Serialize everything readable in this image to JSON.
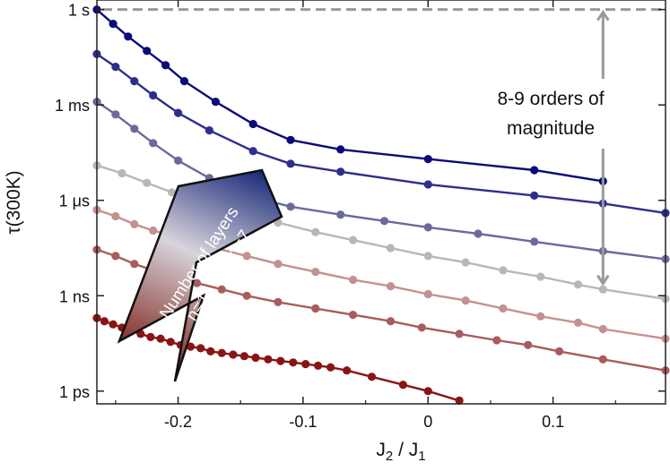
{
  "chart_data": {
    "type": "line",
    "xlabel": "J",
    "xlabel_sub1": "2",
    "xlabel_div": " / J",
    "xlabel_sub2": "1",
    "ylabel": "τ(300K)",
    "x_axis": {
      "range": [
        -0.265,
        0.19
      ],
      "ticks": [
        -0.2,
        -0.1,
        0,
        0.1
      ],
      "tick_labels": [
        "-0.2",
        "-0.1",
        "0",
        "0.1"
      ]
    },
    "y_axis": {
      "scale": "log10 seconds",
      "range": [
        -12.4,
        0.3
      ],
      "ticks": [
        0,
        -3,
        -6,
        -9,
        -12
      ],
      "tick_labels": [
        "1 s",
        "1 ms",
        "1 μs",
        "1 ns",
        "1 ps"
      ]
    },
    "grid": false,
    "series": [
      {
        "color": "#b7b7b7",
        "points": [
          [
            -0.265,
            -4.9
          ],
          [
            -0.245,
            -5.15
          ],
          [
            -0.225,
            -5.45
          ],
          [
            -0.205,
            -5.75
          ],
          [
            -0.175,
            -6.1
          ],
          [
            -0.145,
            -6.45
          ],
          [
            -0.12,
            -6.7
          ],
          [
            -0.09,
            -7.0
          ],
          [
            -0.06,
            -7.25
          ],
          [
            -0.03,
            -7.5
          ],
          [
            0.0,
            -7.75
          ],
          [
            0.03,
            -7.95
          ],
          [
            0.06,
            -8.2
          ],
          [
            0.09,
            -8.4
          ],
          [
            0.12,
            -8.65
          ],
          [
            0.14,
            -8.8
          ],
          [
            0.19,
            -9.1
          ]
        ]
      },
      {
        "color": "#0a0a78",
        "points": [
          [
            -0.265,
            0.0
          ],
          [
            -0.252,
            -0.45
          ],
          [
            -0.24,
            -0.85
          ],
          [
            -0.225,
            -1.3
          ],
          [
            -0.21,
            -1.75
          ],
          [
            -0.195,
            -2.25
          ],
          [
            -0.17,
            -2.9
          ],
          [
            -0.14,
            -3.6
          ],
          [
            -0.11,
            -4.1
          ],
          [
            -0.07,
            -4.4
          ],
          [
            0.0,
            -4.7
          ],
          [
            0.085,
            -5.05
          ],
          [
            0.14,
            -5.4
          ]
        ]
      },
      {
        "color": "#2e2e8c",
        "points": [
          [
            -0.265,
            -1.4
          ],
          [
            -0.25,
            -1.8
          ],
          [
            -0.235,
            -2.25
          ],
          [
            -0.22,
            -2.7
          ],
          [
            -0.2,
            -3.25
          ],
          [
            -0.175,
            -3.8
          ],
          [
            -0.14,
            -4.45
          ],
          [
            -0.11,
            -4.85
          ],
          [
            -0.07,
            -5.1
          ],
          [
            0.0,
            -5.5
          ],
          [
            0.085,
            -5.85
          ],
          [
            0.14,
            -6.1
          ],
          [
            0.19,
            -6.4
          ]
        ]
      },
      {
        "color": "#6a6a9e",
        "points": [
          [
            -0.265,
            -2.9
          ],
          [
            -0.25,
            -3.3
          ],
          [
            -0.235,
            -3.75
          ],
          [
            -0.22,
            -4.2
          ],
          [
            -0.2,
            -4.75
          ],
          [
            -0.175,
            -5.3
          ],
          [
            -0.145,
            -5.85
          ],
          [
            -0.11,
            -6.2
          ],
          [
            -0.07,
            -6.45
          ],
          [
            -0.035,
            -6.65
          ],
          [
            0.0,
            -6.85
          ],
          [
            0.04,
            -7.05
          ],
          [
            0.085,
            -7.3
          ],
          [
            0.14,
            -7.6
          ],
          [
            0.19,
            -7.85
          ]
        ]
      },
      {
        "color": "#c49090",
        "points": [
          [
            -0.265,
            -6.3
          ],
          [
            -0.25,
            -6.5
          ],
          [
            -0.235,
            -6.75
          ],
          [
            -0.22,
            -6.95
          ],
          [
            -0.2,
            -7.15
          ],
          [
            -0.175,
            -7.45
          ],
          [
            -0.145,
            -7.75
          ],
          [
            -0.12,
            -8.0
          ],
          [
            -0.09,
            -8.25
          ],
          [
            -0.06,
            -8.5
          ],
          [
            -0.03,
            -8.7
          ],
          [
            0.0,
            -8.95
          ],
          [
            0.03,
            -9.15
          ],
          [
            0.06,
            -9.4
          ],
          [
            0.09,
            -9.65
          ],
          [
            0.12,
            -9.85
          ],
          [
            0.14,
            -10.05
          ],
          [
            0.19,
            -10.35
          ]
        ]
      },
      {
        "color": "#a85c5c",
        "points": [
          [
            -0.265,
            -7.55
          ],
          [
            -0.25,
            -7.75
          ],
          [
            -0.235,
            -8.0
          ],
          [
            -0.22,
            -8.2
          ],
          [
            -0.205,
            -8.4
          ],
          [
            -0.185,
            -8.6
          ],
          [
            -0.165,
            -8.8
          ],
          [
            -0.145,
            -9.0
          ],
          [
            -0.12,
            -9.2
          ],
          [
            -0.09,
            -9.4
          ],
          [
            -0.06,
            -9.6
          ],
          [
            -0.03,
            -9.8
          ],
          [
            -0.005,
            -10.0
          ],
          [
            0.025,
            -10.2
          ],
          [
            0.055,
            -10.4
          ],
          [
            0.08,
            -10.55
          ],
          [
            0.105,
            -10.75
          ],
          [
            0.14,
            -11.0
          ],
          [
            0.19,
            -11.35
          ]
        ]
      },
      {
        "color": "#8a1414",
        "points": [
          [
            -0.265,
            -9.7
          ],
          [
            -0.259,
            -9.8
          ],
          [
            -0.252,
            -9.9
          ],
          [
            -0.245,
            -10.0
          ],
          [
            -0.238,
            -10.1
          ],
          [
            -0.23,
            -10.2
          ],
          [
            -0.222,
            -10.3
          ],
          [
            -0.214,
            -10.35
          ],
          [
            -0.206,
            -10.45
          ],
          [
            -0.198,
            -10.55
          ],
          [
            -0.19,
            -10.6
          ],
          [
            -0.182,
            -10.65
          ],
          [
            -0.174,
            -10.75
          ],
          [
            -0.165,
            -10.8
          ],
          [
            -0.156,
            -10.85
          ],
          [
            -0.147,
            -10.9
          ],
          [
            -0.138,
            -10.95
          ],
          [
            -0.128,
            -11.0
          ],
          [
            -0.118,
            -11.05
          ],
          [
            -0.108,
            -11.1
          ],
          [
            -0.098,
            -11.15
          ],
          [
            -0.088,
            -11.2
          ],
          [
            -0.078,
            -11.25
          ],
          [
            -0.065,
            -11.35
          ],
          [
            -0.045,
            -11.55
          ],
          [
            -0.02,
            -11.8
          ],
          [
            0.0,
            -12.0
          ],
          [
            0.025,
            -12.3
          ]
        ]
      }
    ],
    "annotations": {
      "reference_line_y": 0.0,
      "span_x": 0.14,
      "span_from_y": 0.0,
      "span_to_y": -8.7,
      "magnitude_line1": "8-9 orders of",
      "magnitude_line2": "magnitude",
      "arrow_title": "Number of layers",
      "arrow_from": "n=1",
      "arrow_symbol": "→",
      "arrow_to": "n=7",
      "arrow_color_start": "#7a1c12",
      "arrow_color_end": "#1a2a78"
    }
  }
}
